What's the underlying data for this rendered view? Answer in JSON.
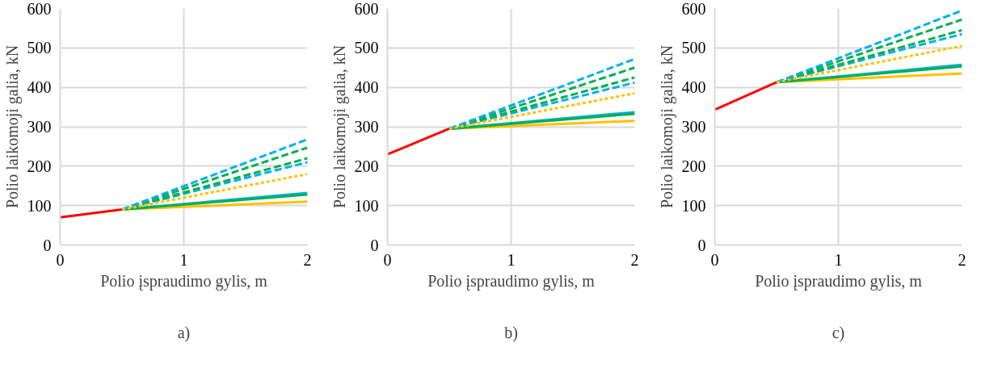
{
  "chart_data": [
    {
      "type": "line",
      "xlabel": "Polio įspraudimo gylis, m",
      "ylabel": "Polio laikomoji galia, kN",
      "annotations": [
        "a)"
      ],
      "xlim": [
        0,
        2
      ],
      "xticks": [
        0,
        1,
        2
      ],
      "ylim": [
        0,
        600
      ],
      "yticks": [
        0,
        100,
        200,
        300,
        400,
        500,
        600
      ],
      "grid": true,
      "marker": "none",
      "series": [
        {
          "color": "#ff0000",
          "x": [
            0,
            0.5
          ],
          "values": [
            70,
            90
          ],
          "line_style": "solid"
        },
        {
          "color": "#ffc000",
          "x": [
            0.5,
            2
          ],
          "values": [
            90,
            110
          ],
          "line_style": "solid"
        },
        {
          "color": "#00b0f0",
          "x": [
            0.5,
            2
          ],
          "values": [
            90,
            132
          ],
          "line_style": "solid"
        },
        {
          "color": "#00b050",
          "x": [
            0.5,
            2
          ],
          "values": [
            90,
            128
          ],
          "line_style": "solid"
        },
        {
          "color": "#ffc000",
          "x": [
            0.5,
            2
          ],
          "values": [
            90,
            180
          ],
          "line_style": "dotted"
        },
        {
          "color": "#00b0f0",
          "x": [
            0.5,
            2
          ],
          "values": [
            90,
            210
          ],
          "line_style": "dashed"
        },
        {
          "color": "#00b050",
          "x": [
            0.5,
            2
          ],
          "values": [
            90,
            220
          ],
          "line_style": "dashed"
        },
        {
          "color": "#00b050",
          "x": [
            0.5,
            2
          ],
          "values": [
            90,
            247
          ],
          "line_style": "dashed"
        },
        {
          "color": "#00b0f0",
          "x": [
            0.5,
            2
          ],
          "values": [
            90,
            268
          ],
          "line_style": "dashed"
        }
      ]
    },
    {
      "type": "line",
      "xlabel": "Polio įspraudimo gylis, m",
      "ylabel": "Polio laikomoji galia, kN",
      "annotations": [
        "b)"
      ],
      "xlim": [
        0,
        2
      ],
      "xticks": [
        0,
        1,
        2
      ],
      "ylim": [
        0,
        600
      ],
      "yticks": [
        0,
        100,
        200,
        300,
        400,
        500,
        600
      ],
      "grid": true,
      "marker": "none",
      "series": [
        {
          "color": "#ff0000",
          "x": [
            0,
            0.5
          ],
          "values": [
            230,
            295
          ],
          "line_style": "solid"
        },
        {
          "color": "#ffc000",
          "x": [
            0.5,
            2
          ],
          "values": [
            295,
            315
          ],
          "line_style": "solid"
        },
        {
          "color": "#00b0f0",
          "x": [
            0.5,
            2
          ],
          "values": [
            295,
            337
          ],
          "line_style": "solid"
        },
        {
          "color": "#00b050",
          "x": [
            0.5,
            2
          ],
          "values": [
            295,
            333
          ],
          "line_style": "solid"
        },
        {
          "color": "#ffc000",
          "x": [
            0.5,
            2
          ],
          "values": [
            295,
            385
          ],
          "line_style": "dotted"
        },
        {
          "color": "#00b0f0",
          "x": [
            0.5,
            2
          ],
          "values": [
            295,
            412
          ],
          "line_style": "dashed"
        },
        {
          "color": "#00b050",
          "x": [
            0.5,
            2
          ],
          "values": [
            295,
            425
          ],
          "line_style": "dashed"
        },
        {
          "color": "#00b050",
          "x": [
            0.5,
            2
          ],
          "values": [
            295,
            450
          ],
          "line_style": "dashed"
        },
        {
          "color": "#00b0f0",
          "x": [
            0.5,
            2
          ],
          "values": [
            295,
            472
          ],
          "line_style": "dashed"
        }
      ]
    },
    {
      "type": "line",
      "xlabel": "Polio įspraudimo gylis, m",
      "ylabel": "Polio laikomoji galia, kN",
      "annotations": [
        "c)"
      ],
      "xlim": [
        0,
        2
      ],
      "xticks": [
        0,
        1,
        2
      ],
      "ylim": [
        0,
        600
      ],
      "yticks": [
        0,
        100,
        200,
        300,
        400,
        500,
        600
      ],
      "grid": true,
      "marker": "none",
      "series": [
        {
          "color": "#ff0000",
          "x": [
            0,
            0.5
          ],
          "values": [
            343,
            413
          ],
          "line_style": "solid"
        },
        {
          "color": "#ffc000",
          "x": [
            0.5,
            2
          ],
          "values": [
            413,
            435
          ],
          "line_style": "solid"
        },
        {
          "color": "#00b0f0",
          "x": [
            0.5,
            2
          ],
          "values": [
            413,
            457
          ],
          "line_style": "solid"
        },
        {
          "color": "#00b050",
          "x": [
            0.5,
            2
          ],
          "values": [
            413,
            453
          ],
          "line_style": "solid"
        },
        {
          "color": "#ffc000",
          "x": [
            0.5,
            2
          ],
          "values": [
            413,
            505
          ],
          "line_style": "dotted"
        },
        {
          "color": "#00b0f0",
          "x": [
            0.5,
            2
          ],
          "values": [
            413,
            535
          ],
          "line_style": "dashed"
        },
        {
          "color": "#00b050",
          "x": [
            0.5,
            2
          ],
          "values": [
            413,
            545
          ],
          "line_style": "dashed"
        },
        {
          "color": "#00b050",
          "x": [
            0.5,
            2
          ],
          "values": [
            413,
            572
          ],
          "line_style": "dashed"
        },
        {
          "color": "#00b0f0",
          "x": [
            0.5,
            2
          ],
          "values": [
            413,
            595
          ],
          "line_style": "dashed"
        }
      ]
    }
  ]
}
